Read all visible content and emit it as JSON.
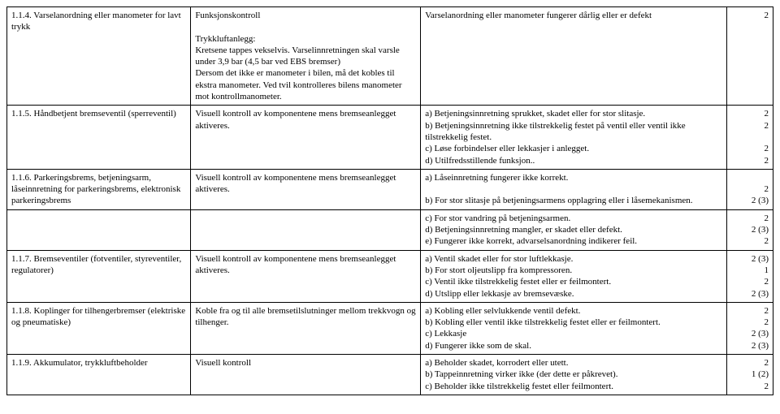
{
  "rows": [
    {
      "c1": "1.1.4. Varselanordning eller manometer for lavt trykk",
      "c2": "Funksjonskontroll\n\nTrykkluftanlegg:\nKretsene tappes vekselvis. Varselinnretningen skal varsle under 3,9 bar (4,5 bar ved EBS bremser)\nDersom det ikke er manometer i bilen, må det kobles til ekstra manometer. Ved tvil kontrolleres bilens manometer mot kontrollmanometer.",
      "c3": "Varselanordning eller manometer fungerer dårlig eller er defekt",
      "c4": "2"
    },
    {
      "c1": "1.1.5. Håndbetjent bremseventil (sperreventil)",
      "c2": "Visuell kontroll av komponentene mens bremseanlegget aktiveres.",
      "c3": "a) Betjeningsinnretning sprukket, skadet eller for stor slitasje.\nb) Betjeningsinnretning ikke tilstrekkelig festet på ventil eller ventil ikke tilstrekkelig festet.\nc) Løse forbindelser eller lekkasjer i anlegget.\nd) Utilfredsstillende funksjon..",
      "c4": "2\n2\n\n2\n2"
    },
    {
      "c1": "1.1.6. Parkeringsbrems, betjeningsarm, låseinnretning for parkeringsbrems, elektronisk parkeringsbrems",
      "c2": "Visuell kontroll av komponentene mens bremseanlegget aktiveres.",
      "c3": "a) Låseinnretning fungerer ikke korrekt.\n\nb) For stor slitasje på betjeningsarmens opplagring eller i låsemekanismen.",
      "c4": "\n2\n2 (3)"
    },
    {
      "c1": "",
      "c2": "",
      "c3": "c) For stor vandring på betjeningsarmen.\nd) Betjeningsinnretning mangler, er skadet eller defekt.\ne) Fungerer ikke korrekt, advarselsanordning indikerer feil.",
      "c4": "2\n2 (3)\n2"
    },
    {
      "c1": "1.1.7. Bremseventiler (fotventiler, styreventiler, regulatorer)",
      "c2": "Visuell kontroll av komponentene mens bremseanlegget aktiveres.",
      "c3": "a) Ventil skadet eller for stor luftlekkasje.\nb) For stort oljeutslipp fra kompressoren.\nc) Ventil ikke tilstrekkelig festet eller er feilmontert.\nd) Utslipp eller lekkasje av bremsevæske.",
      "c4": "2 (3)\n1\n2\n2 (3)"
    },
    {
      "c1": "1.1.8. Koplinger for tilhengerbremser (elektriske og pneumatiske)",
      "c2": "Koble fra og til alle bremsetilslutninger mellom trekkvogn og tilhenger.",
      "c3": "a) Kobling eller selvlukkende ventil defekt.\nb) Kobling eller ventil ikke tilstrekkelig festet eller er feilmontert.\nc) Lekkasje\nd) Fungerer ikke som de skal.",
      "c4": "2\n2\n2 (3)\n2 (3)"
    },
    {
      "c1": "1.1.9. Akkumulator, trykkluftbeholder",
      "c2": "Visuell kontroll",
      "c3": "a) Beholder skadet, korrodert eller utett.\nb) Tappeinnretning virker ikke (der dette er påkrevet).\nc) Beholder ikke tilstrekkelig festet eller feilmontert.",
      "c4": "2\n1 (2)\n2"
    }
  ]
}
